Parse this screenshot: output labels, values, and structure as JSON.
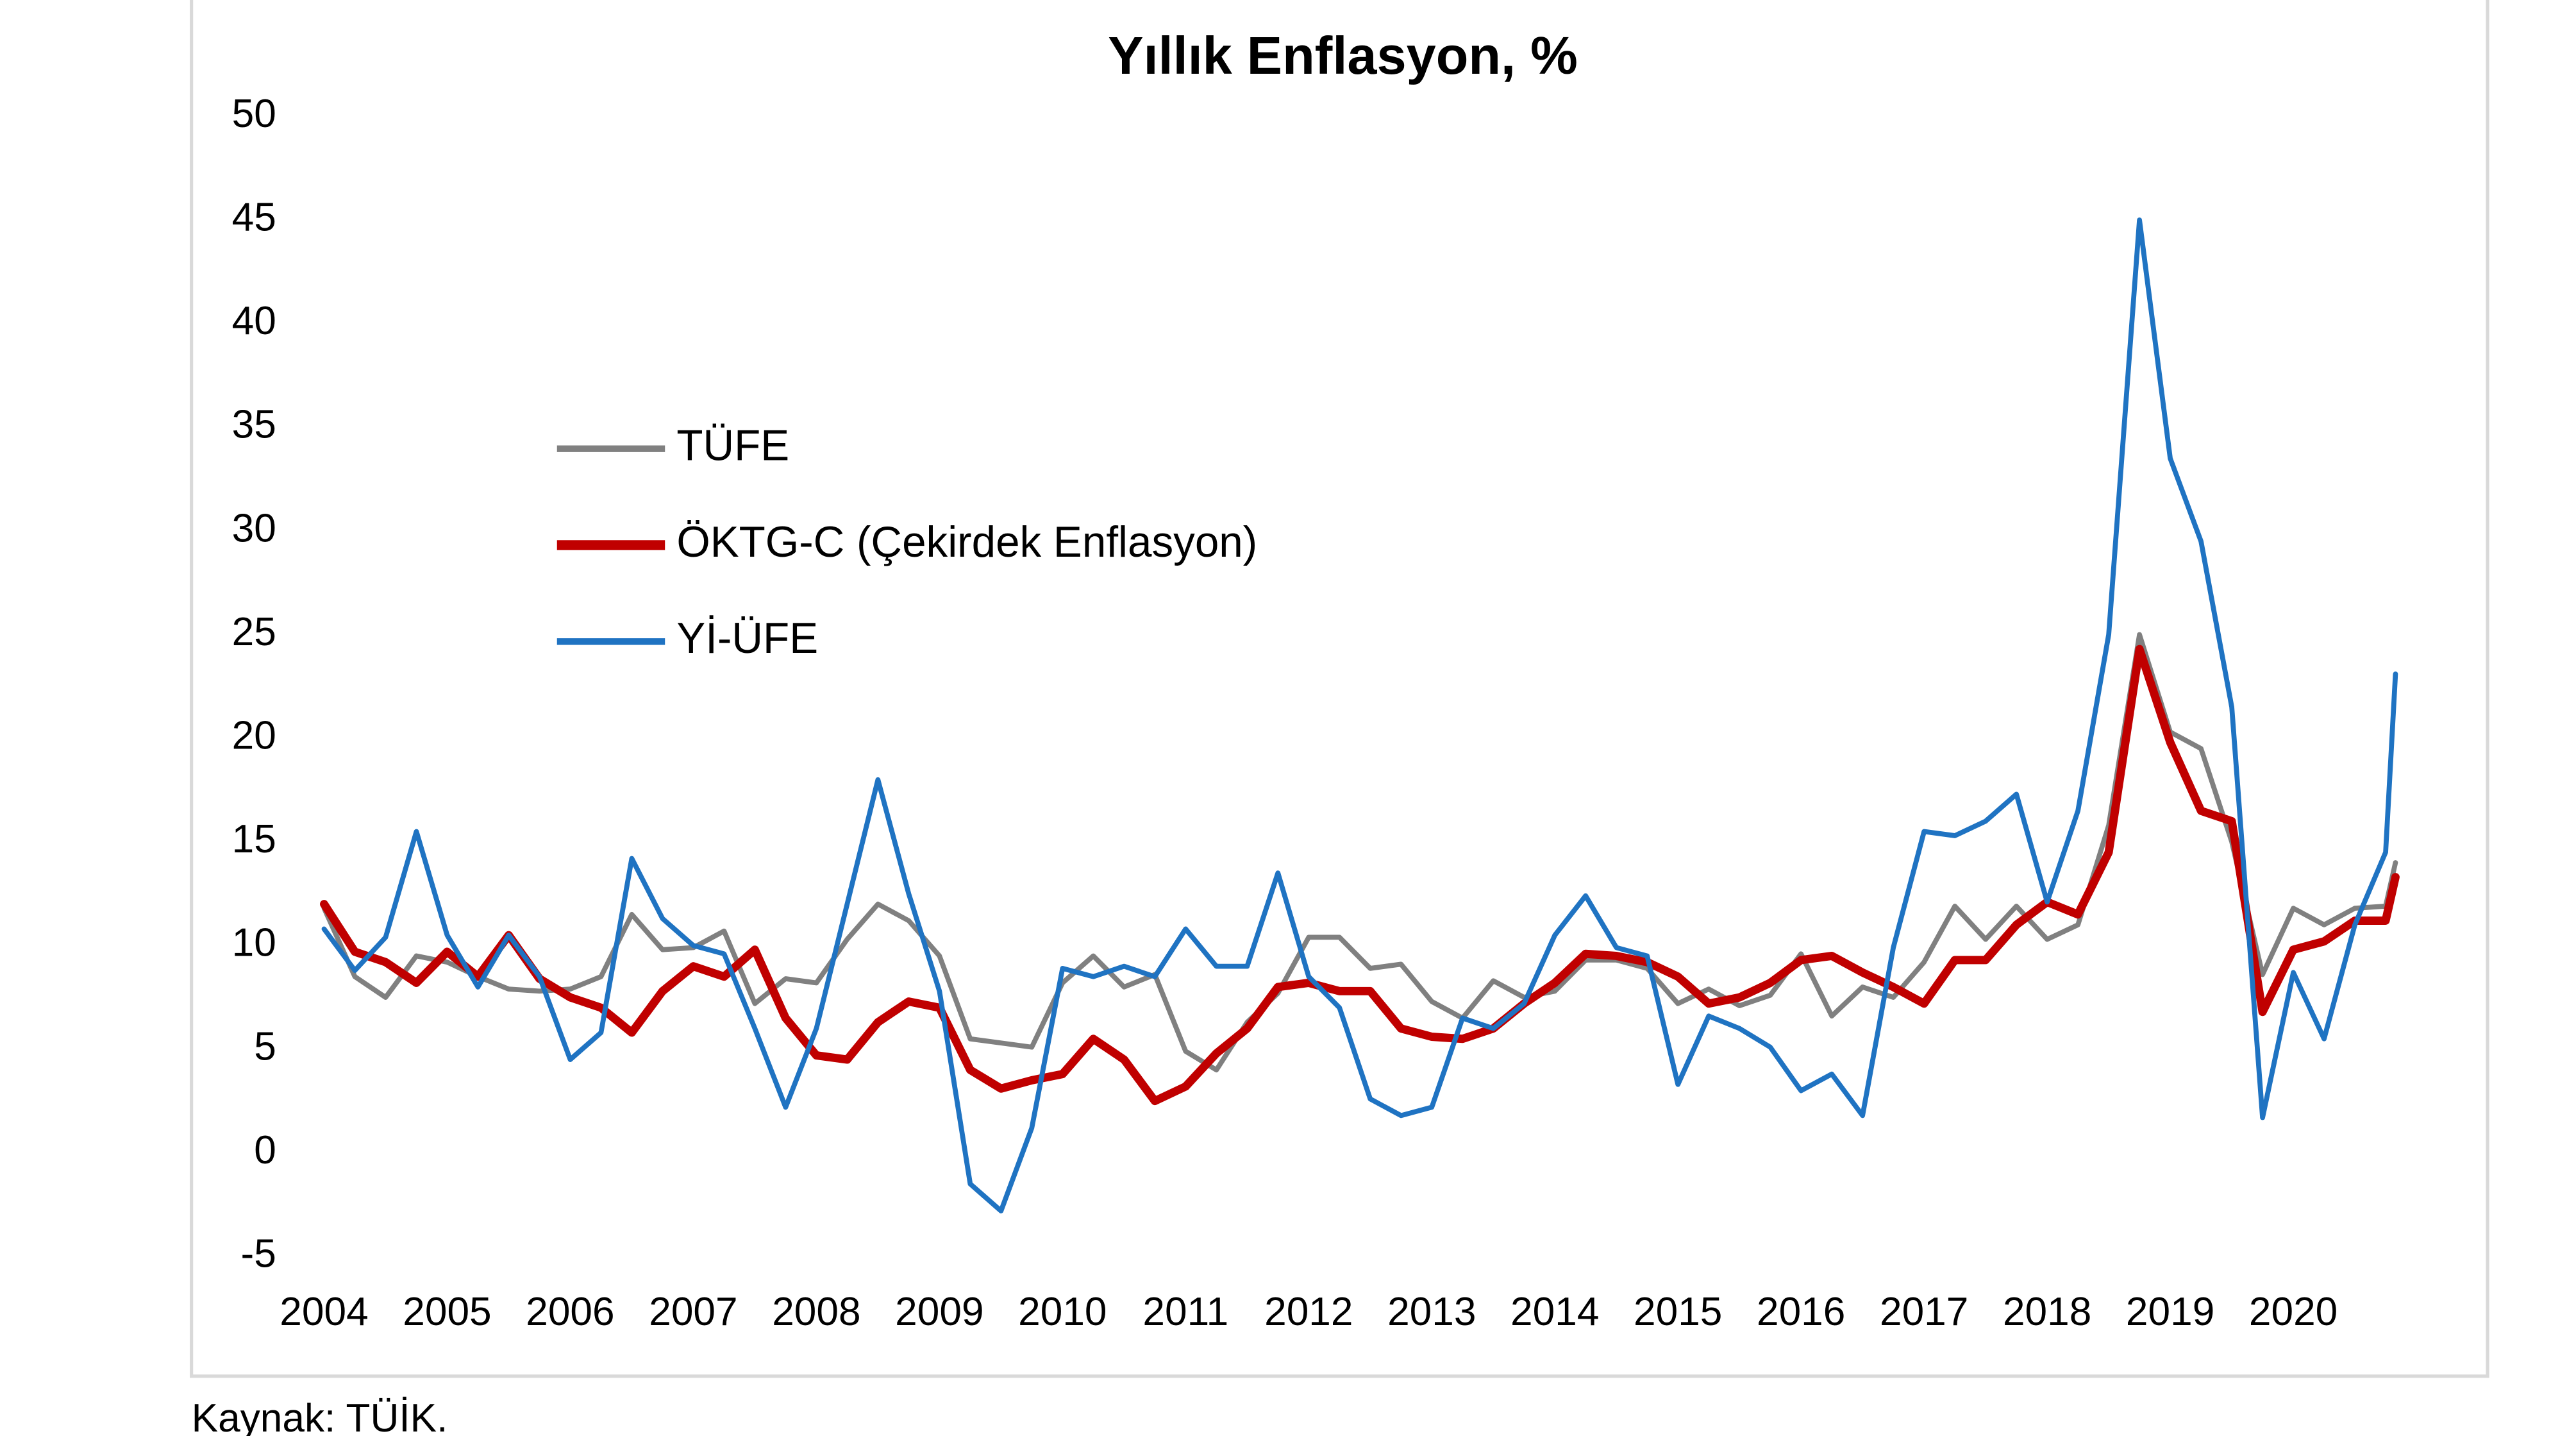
{
  "chart_data": {
    "type": "line",
    "title": "Yıllık Enflasyon, %",
    "source": "Kaynak: TÜİK.",
    "x": [
      2004,
      2004.25,
      2004.5,
      2004.75,
      2005,
      2005.25,
      2005.5,
      2005.75,
      2006,
      2006.25,
      2006.5,
      2006.75,
      2007,
      2007.25,
      2007.5,
      2007.75,
      2008,
      2008.25,
      2008.5,
      2008.75,
      2009,
      2009.25,
      2009.5,
      2009.75,
      2010,
      2010.25,
      2010.5,
      2010.75,
      2011,
      2011.25,
      2011.5,
      2011.75,
      2012,
      2012.25,
      2012.5,
      2012.75,
      2013,
      2013.25,
      2013.5,
      2013.75,
      2014,
      2014.25,
      2014.5,
      2014.75,
      2015,
      2015.25,
      2015.5,
      2015.75,
      2016,
      2016.25,
      2016.5,
      2016.75,
      2017,
      2017.25,
      2017.5,
      2017.75,
      2018,
      2018.25,
      2018.5,
      2018.75,
      2019,
      2019.25,
      2019.5,
      2019.75,
      2020,
      2020.25,
      2020.5,
      2020.75,
      2020.83
    ],
    "series": [
      {
        "name": "TÜFE",
        "color": "#808080",
        "width": 3,
        "values": [
          11.8,
          8.5,
          7.5,
          9.5,
          9.2,
          8.5,
          7.9,
          7.8,
          7.9,
          8.5,
          11.5,
          9.8,
          9.9,
          10.7,
          7.2,
          8.4,
          8.2,
          10.3,
          12,
          11.2,
          9.5,
          5.5,
          5.3,
          5.1,
          8.2,
          9.5,
          8,
          8.6,
          4.9,
          4,
          6.3,
          7.7,
          10.4,
          10.4,
          8.9,
          9.1,
          7.3,
          6.5,
          8.3,
          7.5,
          7.8,
          9.3,
          9.3,
          8.9,
          7.2,
          7.9,
          7.1,
          7.6,
          9.6,
          6.6,
          8,
          7.5,
          9.2,
          11.9,
          10.3,
          11.9,
          10.3,
          11,
          15.8,
          25,
          20.3,
          19.5,
          15,
          8.6,
          11.8,
          11,
          11.8,
          11.9,
          14
        ]
      },
      {
        "name": "ÖKTG-C (Çekirdek Enflasyon)",
        "color": "#c00000",
        "width": 5,
        "values": [
          12,
          9.7,
          9.2,
          8.2,
          9.7,
          8.5,
          10.5,
          8.4,
          7.5,
          7,
          5.8,
          7.8,
          9,
          8.5,
          9.8,
          6.5,
          4.7,
          4.5,
          6.3,
          7.3,
          7,
          4,
          3.1,
          3.5,
          3.8,
          5.5,
          4.5,
          2.5,
          3.2,
          4.8,
          6,
          8,
          8.2,
          7.8,
          7.8,
          6,
          5.6,
          5.5,
          6,
          7.2,
          8.2,
          9.6,
          9.5,
          9.2,
          8.5,
          7.2,
          7.5,
          8.2,
          9.3,
          9.5,
          8.7,
          8,
          7.2,
          9.3,
          9.3,
          11,
          12.1,
          11.5,
          14.5,
          24.3,
          19.8,
          16.5,
          16,
          6.8,
          9.8,
          10.2,
          11.2,
          11.2,
          13.3
        ]
      },
      {
        "name": "Yİ-ÜFE",
        "color": "#1f73c2",
        "width": 3,
        "values": [
          10.8,
          8.8,
          10.4,
          15.5,
          10.5,
          8,
          10.5,
          8.5,
          4.5,
          5.8,
          14.2,
          11.3,
          10,
          9.6,
          6,
          2.2,
          6,
          12,
          18,
          12.5,
          7.8,
          -1.5,
          -2.8,
          1.2,
          8.9,
          8.5,
          9,
          8.5,
          10.8,
          9,
          9,
          13.5,
          8.5,
          7,
          2.6,
          1.8,
          2.2,
          6.5,
          6,
          7.2,
          10.5,
          12.4,
          9.9,
          9.5,
          3.3,
          6.6,
          6,
          5.1,
          3,
          3.8,
          1.8,
          9.9,
          15.5,
          15.3,
          16,
          17.3,
          12.1,
          16.5,
          25,
          45,
          33.5,
          29.5,
          21.5,
          1.7,
          8.7,
          5.5,
          11,
          14.5,
          23.1
        ]
      }
    ],
    "xlim": [
      2003.8,
      2021.2
    ],
    "xticks": [
      2004,
      2005,
      2006,
      2007,
      2008,
      2009,
      2010,
      2011,
      2012,
      2013,
      2014,
      2015,
      2016,
      2017,
      2018,
      2019,
      2020
    ],
    "ylim": [
      -5,
      50
    ],
    "yticks": [
      -5,
      0,
      5,
      10,
      15,
      20,
      25,
      30,
      35,
      40,
      45,
      50
    ],
    "grid": false,
    "legend": "upper left"
  }
}
